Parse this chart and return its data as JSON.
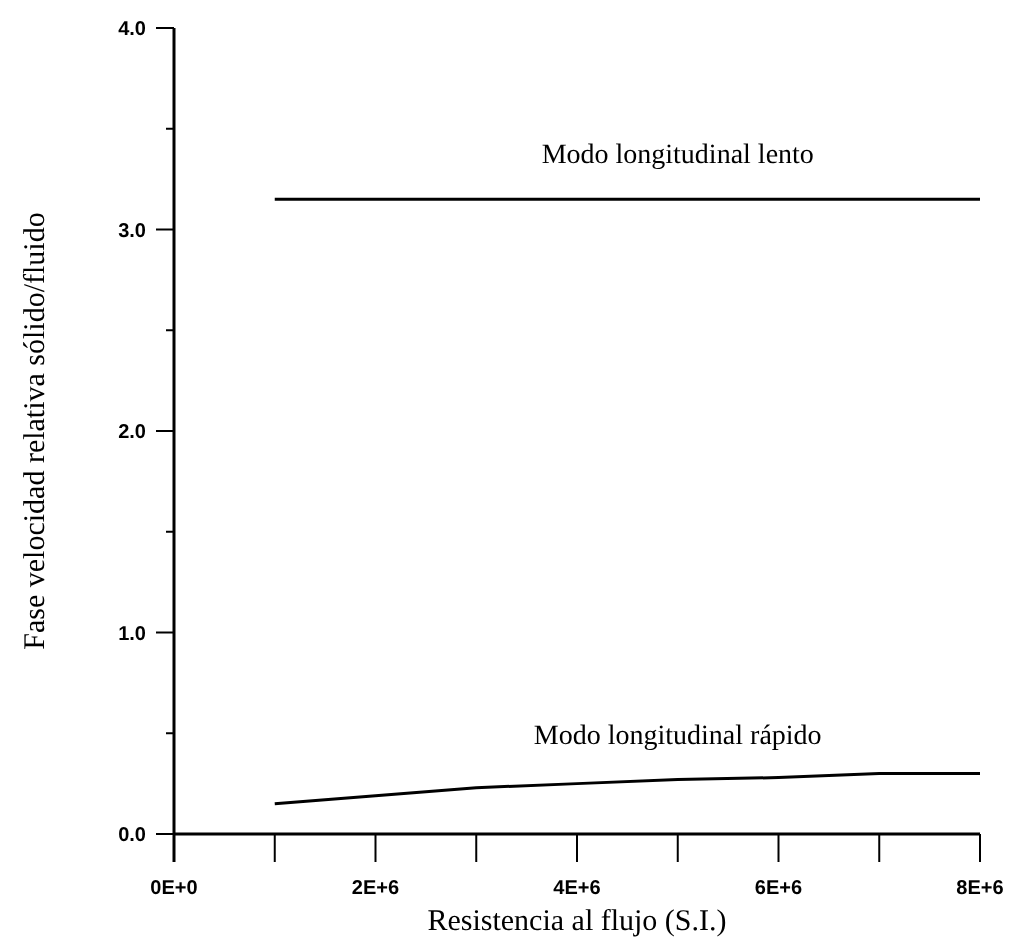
{
  "chart_data": {
    "type": "line",
    "xlabel": "Resistencia al flujo (S.I.)",
    "ylabel": "Fase velocidad relativa sólido/fluido",
    "x": [
      1000000,
      2000000,
      3000000,
      4000000,
      5000000,
      6000000,
      7000000,
      8000000
    ],
    "series": [
      {
        "name": "Modo longitudinal lento",
        "color": "#000000",
        "values": [
          3.15,
          3.15,
          3.15,
          3.15,
          3.15,
          3.15,
          3.15,
          3.15
        ]
      },
      {
        "name": "Modo longitudinal rápido",
        "color": "#000000",
        "values": [
          0.15,
          0.19,
          0.23,
          0.25,
          0.27,
          0.28,
          0.3,
          0.3
        ]
      }
    ],
    "xlim": [
      0,
      8000000
    ],
    "ylim": [
      0,
      4
    ],
    "xticks": [
      {
        "value": 0,
        "label": "0E+0"
      },
      {
        "value": 1000000,
        "label": null
      },
      {
        "value": 2000000,
        "label": "2E+6"
      },
      {
        "value": 3000000,
        "label": null
      },
      {
        "value": 4000000,
        "label": "4E+6"
      },
      {
        "value": 5000000,
        "label": null
      },
      {
        "value": 6000000,
        "label": "6E+6"
      },
      {
        "value": 7000000,
        "label": null
      },
      {
        "value": 8000000,
        "label": "8E+6"
      }
    ],
    "yticks": [
      {
        "value": 0,
        "label": "0.0"
      },
      {
        "value": 0.5,
        "label": null
      },
      {
        "value": 1,
        "label": "1.0"
      },
      {
        "value": 1.5,
        "label": null
      },
      {
        "value": 2,
        "label": "2.0"
      },
      {
        "value": 2.5,
        "label": null
      },
      {
        "value": 3,
        "label": "3.0"
      },
      {
        "value": 3.5,
        "label": null
      },
      {
        "value": 4,
        "label": "4.0"
      }
    ],
    "grid": false,
    "legend": false,
    "marker": "none",
    "line_style": "solid"
  }
}
